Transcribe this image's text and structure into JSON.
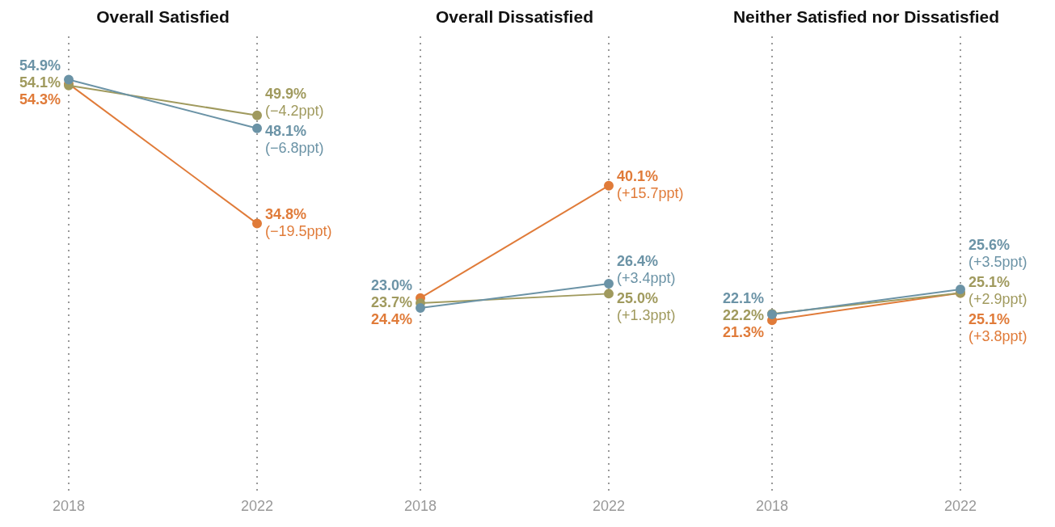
{
  "chart_data": [
    {
      "type": "line",
      "title": "Overall Satisfied",
      "categories": [
        "2018",
        "2022"
      ],
      "grid": "x",
      "tick_labels": "x",
      "marker": "circle",
      "line_style": "solid",
      "legend": false,
      "series": [
        {
          "color": "#6b93a6",
          "values": [
            54.9,
            48.1
          ],
          "value_labels": [
            "54.9%",
            "48.1%\n(−6.8ppt)"
          ]
        },
        {
          "color": "#a09a5e",
          "values": [
            54.1,
            49.9
          ],
          "value_labels": [
            "54.1%",
            "49.9%\n(−4.2ppt)"
          ]
        },
        {
          "color": "#e07b39",
          "values": [
            54.3,
            34.8
          ],
          "value_labels": [
            "54.3%",
            "34.8%\n(−19.5ppt)"
          ]
        }
      ]
    },
    {
      "type": "line",
      "title": "Overall Dissatisfied",
      "categories": [
        "2018",
        "2022"
      ],
      "grid": "x",
      "tick_labels": "x",
      "marker": "circle",
      "line_style": "solid",
      "legend": false,
      "series": [
        {
          "color": "#6b93a6",
          "values": [
            23.0,
            26.4
          ],
          "value_labels": [
            "23.0%",
            "26.4%\n(+3.4ppt)"
          ]
        },
        {
          "color": "#a09a5e",
          "values": [
            23.7,
            25.0
          ],
          "value_labels": [
            "23.7%",
            "25.0%\n(+1.3ppt)"
          ]
        },
        {
          "color": "#e07b39",
          "values": [
            24.4,
            40.1
          ],
          "value_labels": [
            "24.4%",
            "40.1%\n(+15.7ppt)"
          ]
        }
      ]
    },
    {
      "type": "line",
      "title": "Neither Satisfied nor Dissatisfied",
      "categories": [
        "2018",
        "2022"
      ],
      "grid": "x",
      "tick_labels": "x",
      "marker": "circle",
      "line_style": "solid",
      "legend": false,
      "series": [
        {
          "color": "#6b93a6",
          "values": [
            22.1,
            25.6
          ],
          "value_labels": [
            "22.1%",
            "25.6%\n(+3.5ppt)"
          ]
        },
        {
          "color": "#a09a5e",
          "values": [
            22.2,
            25.1
          ],
          "value_labels": [
            "22.2%",
            "25.1%\n(+2.9ppt)"
          ]
        },
        {
          "color": "#e07b39",
          "values": [
            21.3,
            25.1
          ],
          "value_labels": [
            "21.3%",
            "25.1%\n(+3.8ppt)"
          ]
        }
      ]
    }
  ]
}
